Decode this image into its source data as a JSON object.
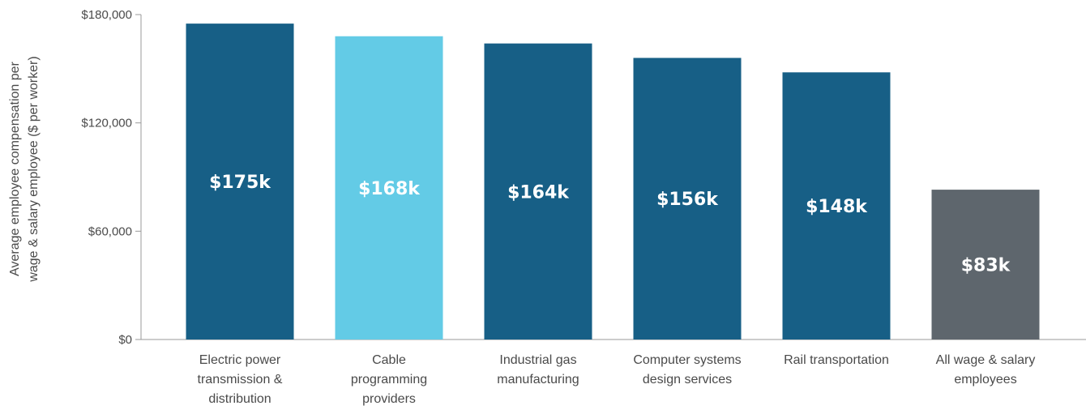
{
  "chart_data": {
    "type": "bar",
    "title": "",
    "categories": [
      [
        "Electric power",
        "transmission &",
        "distribution"
      ],
      [
        "Cable",
        "programming",
        "providers"
      ],
      [
        "Industrial gas",
        "manufacturing"
      ],
      [
        "Computer systems",
        "design services"
      ],
      [
        "Rail transportation"
      ],
      [
        "All wage & salary",
        "employees"
      ]
    ],
    "values": [
      175000,
      168000,
      164000,
      156000,
      148000,
      83000
    ],
    "data_labels": [
      "$175k",
      "$168k",
      "$164k",
      "$156k",
      "$148k",
      "$83k"
    ],
    "bar_colors": [
      "#175f86",
      "#63cbe6",
      "#175f86",
      "#175f86",
      "#175f86",
      "#5e666d"
    ],
    "xlabel": "",
    "ylabel": [
      "Average employee compensation per",
      "wage & salary employee ($ per worker)"
    ],
    "ylim": [
      0,
      180000
    ],
    "yticks": [
      0,
      60000,
      120000,
      180000
    ],
    "ytick_labels": [
      "$0",
      "$60,000",
      "$120,000",
      "$180,000"
    ],
    "grid": false,
    "legend": "none"
  }
}
